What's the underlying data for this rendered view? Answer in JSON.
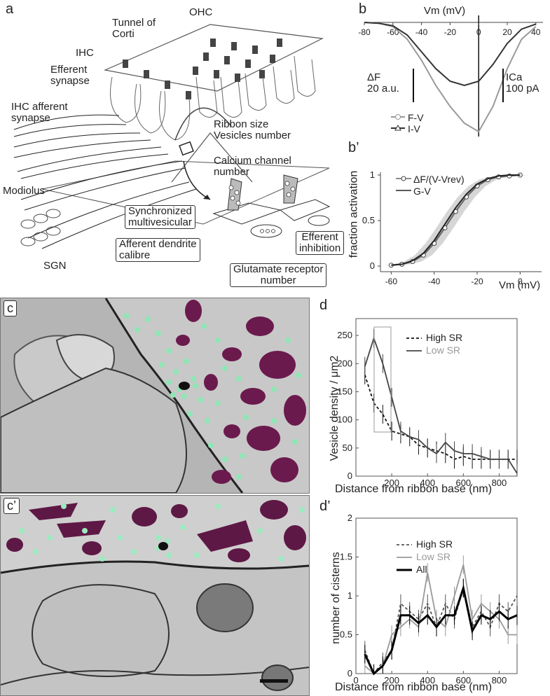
{
  "panel_a": {
    "letter": "a",
    "labels": {
      "ohc": "OHC",
      "tunnel": "Tunnel of\nCorti",
      "ihc": "IHC",
      "efferent_synapse": "Efferent\nsynapse",
      "ihc_afferent": "IHC afferent\nsynapse",
      "ribbon": "Ribbon size\nVesicles number",
      "calcium": "Calcium channel\nnumber",
      "modiolus": "Modiolus",
      "synchronized": "Synchronized\nmultivesicular",
      "afferent_dendrite": "Afferent dendrite\ncalibre",
      "efferent_inhibition": "Efferent\ninhibition",
      "glutamate": "Glutamate receptor\nnumber",
      "sgn": "SGN"
    }
  },
  "panel_b": {
    "letter": "b",
    "xlabel": "Vm (mV)",
    "ticks": [
      "-80",
      "-60",
      "-40",
      "-20",
      "0",
      "20",
      "40"
    ],
    "scale_df": "ΔF\n20 a.u.",
    "scale_ica": "ICa\n100 pA",
    "legend": [
      "F-V",
      "I-V"
    ]
  },
  "panel_b2": {
    "letter": "b’",
    "ylabel": "fraction activation",
    "xlabel": "Vm (mV)",
    "xticks": [
      "-60",
      "-40",
      "-20",
      "0"
    ],
    "yticks": [
      "0",
      "0.5",
      "1"
    ],
    "legend": [
      "ΔF/(V-Vrev)",
      "G-V"
    ]
  },
  "panel_c": {
    "letter": "c"
  },
  "panel_c2": {
    "letter": "c’"
  },
  "panel_d": {
    "letter": "d",
    "ylabel": "Vesicle density / μm2",
    "xlabel": "Distance from ribbon base (nm)",
    "xticks": [
      "200",
      "400",
      "600",
      "800"
    ],
    "yticks": [
      "0",
      "50",
      "100",
      "150",
      "200",
      "250"
    ],
    "legend": [
      "High SR",
      "Low SR"
    ]
  },
  "panel_d2": {
    "letter": "d’",
    "ylabel": "number of cisterns",
    "xlabel": "Distance from ribbon base (nm)",
    "xticks": [
      "0",
      "200",
      "400",
      "600",
      "800"
    ],
    "yticks": [
      "0",
      "0.5",
      "1",
      "1.5",
      "2"
    ],
    "legend": [
      "High SR",
      "Low SR",
      "All"
    ]
  },
  "chart_data": [
    {
      "panel": "d",
      "type": "line",
      "xlabel": "Distance from ribbon base (nm)",
      "ylabel": "Vesicle density / μm2",
      "xlim": [
        0,
        900
      ],
      "ylim": [
        0,
        280
      ],
      "x": [
        50,
        100,
        150,
        200,
        250,
        300,
        350,
        400,
        450,
        500,
        550,
        600,
        650,
        700,
        750,
        800,
        850,
        900
      ],
      "series": [
        {
          "name": "High SR",
          "color": "#111111",
          "dash": true,
          "values": [
            180,
            130,
            110,
            80,
            75,
            70,
            55,
            50,
            45,
            40,
            30,
            35,
            30,
            30,
            30,
            30,
            30,
            30
          ]
        },
        {
          "name": "Low SR",
          "color": "#444444",
          "dash": false,
          "values": [
            195,
            245,
            200,
            140,
            80,
            70,
            65,
            50,
            40,
            60,
            45,
            40,
            40,
            35,
            30,
            30,
            30,
            5
          ]
        }
      ]
    },
    {
      "panel": "d’",
      "type": "line",
      "xlabel": "Distance from ribbon base (nm)",
      "ylabel": "number of cisterns",
      "xlim": [
        0,
        900
      ],
      "ylim": [
        0,
        2
      ],
      "x": [
        50,
        100,
        150,
        200,
        250,
        300,
        350,
        400,
        450,
        500,
        550,
        600,
        650,
        700,
        750,
        800,
        850,
        900
      ],
      "series": [
        {
          "name": "High SR",
          "color": "#555555",
          "dash": true,
          "values": [
            0.3,
            0.0,
            0.15,
            0.3,
            0.9,
            0.8,
            0.7,
            0.9,
            0.6,
            0.9,
            0.7,
            1.1,
            0.6,
            0.8,
            0.6,
            0.9,
            0.8,
            1.0
          ]
        },
        {
          "name": "Low SR",
          "color": "#999999",
          "dash": false,
          "values": [
            0.1,
            0.0,
            0.1,
            0.5,
            0.6,
            0.7,
            0.6,
            1.3,
            0.7,
            0.6,
            1.0,
            1.4,
            0.7,
            0.9,
            0.8,
            0.7,
            0.5,
            0.5
          ]
        },
        {
          "name": "All",
          "color": "#000000",
          "dash": false,
          "values": [
            0.25,
            0.0,
            0.1,
            0.3,
            0.75,
            0.75,
            0.65,
            0.75,
            0.6,
            0.75,
            0.75,
            1.1,
            0.55,
            0.75,
            0.7,
            0.8,
            0.7,
            0.75
          ]
        }
      ]
    },
    {
      "panel": "b",
      "type": "line",
      "xlabel": "Vm (mV)",
      "xlim": [
        -80,
        45
      ],
      "x": [
        -80,
        -70,
        -60,
        -50,
        -40,
        -30,
        -20,
        -10,
        0,
        10,
        20,
        30,
        40
      ],
      "series": [
        {
          "name": "F-V",
          "color": "#999999",
          "values": [
            0,
            -1,
            -5,
            -20,
            -45,
            -75,
            -100,
            -120,
            -130,
            -100,
            -55,
            -20,
            -5
          ]
        },
        {
          "name": "I-V",
          "color": "#333333",
          "values": [
            0,
            -1,
            -4,
            -15,
            -35,
            -55,
            -70,
            -75,
            -70,
            -50,
            -25,
            -8,
            -2
          ]
        }
      ]
    },
    {
      "panel": "b’",
      "type": "line",
      "xlabel": "Vm (mV)",
      "ylabel": "fraction activation",
      "xlim": [
        -65,
        10
      ],
      "ylim": [
        0,
        1
      ],
      "x": [
        -60,
        -55,
        -50,
        -45,
        -40,
        -35,
        -30,
        -25,
        -20,
        -15,
        -10,
        -5,
        0
      ],
      "series": [
        {
          "name": "ΔF/(V-Vrev)",
          "values": [
            0.01,
            0.02,
            0.05,
            0.12,
            0.25,
            0.42,
            0.6,
            0.76,
            0.88,
            0.95,
            0.98,
            0.99,
            1.0
          ]
        },
        {
          "name": "G-V",
          "values": [
            0.01,
            0.02,
            0.06,
            0.14,
            0.28,
            0.46,
            0.64,
            0.79,
            0.9,
            0.96,
            0.99,
            1.0,
            1.0
          ]
        }
      ]
    }
  ]
}
